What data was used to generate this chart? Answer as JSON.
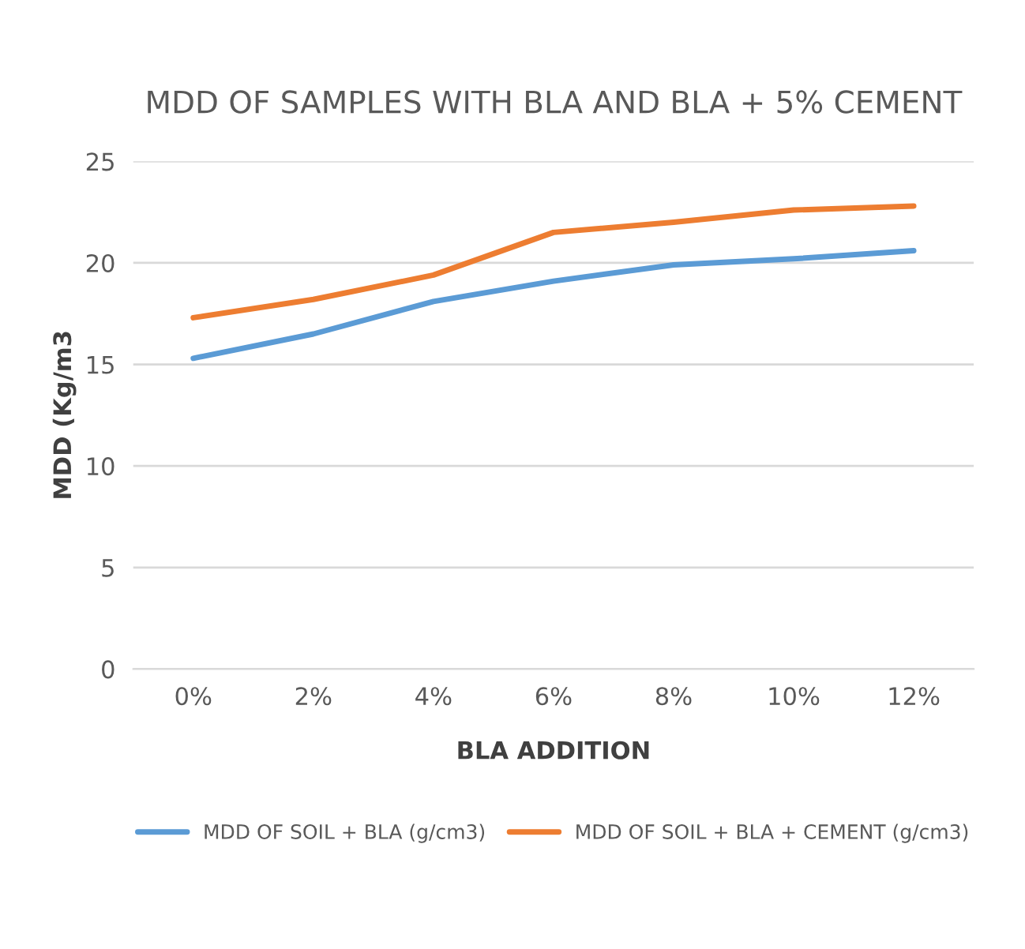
{
  "chart_data": {
    "type": "line",
    "title": "MDD OF SAMPLES WITH BLA AND BLA + 5% CEMENT",
    "xlabel": "BLA ADDITION",
    "ylabel": "MDD (Kg/m3",
    "categories": [
      "0%",
      "2%",
      "4%",
      "6%",
      "8%",
      "10%",
      "12%"
    ],
    "series": [
      {
        "name": "MDD OF SOIL + BLA (g/cm3)",
        "color": "#5b9bd5",
        "values": [
          15.3,
          16.5,
          18.1,
          19.1,
          19.9,
          20.2,
          20.6
        ]
      },
      {
        "name": "MDD OF SOIL + BLA + CEMENT (g/cm3)",
        "color": "#ed7d31",
        "values": [
          17.3,
          18.2,
          19.4,
          21.5,
          22.0,
          22.6,
          22.8
        ]
      }
    ],
    "ylim": [
      0,
      25
    ],
    "yticks": [
      0,
      5,
      10,
      15,
      20,
      25
    ],
    "grid": "y",
    "legend": "bottom",
    "marker": "none",
    "line_style": "solid"
  }
}
